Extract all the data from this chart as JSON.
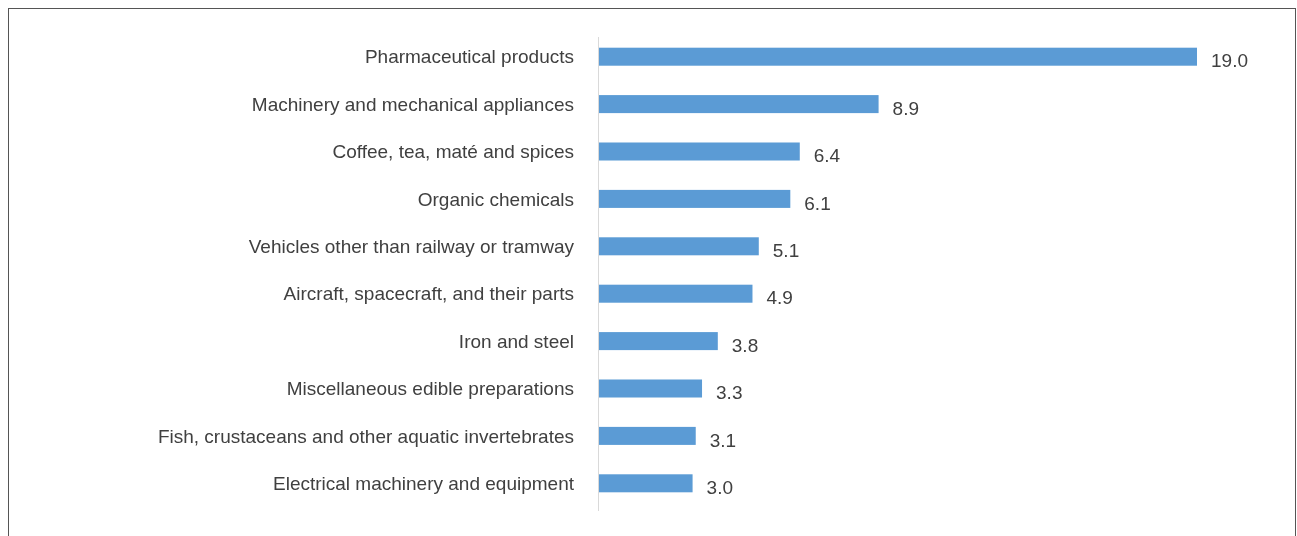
{
  "chart_data": {
    "type": "bar",
    "orientation": "horizontal",
    "categories": [
      "Pharmaceutical products",
      "Machinery and mechanical appliances",
      "Coffee, tea, maté and spices",
      "Organic chemicals",
      "Vehicles other than railway or tramway",
      "Aircraft, spacecraft, and their parts",
      "Iron and steel",
      "Miscellaneous edible preparations",
      "Fish, crustaceans and other aquatic invertebrates",
      "Electrical machinery and equipment"
    ],
    "values": [
      19.0,
      8.9,
      6.4,
      6.1,
      5.1,
      4.9,
      3.8,
      3.3,
      3.1,
      3.0
    ],
    "value_labels": [
      "19.0",
      "8.9",
      "6.4",
      "6.1",
      "5.1",
      "4.9",
      "3.8",
      "3.3",
      "3.1",
      "3.0"
    ],
    "color": "#5b9bd5"
  }
}
